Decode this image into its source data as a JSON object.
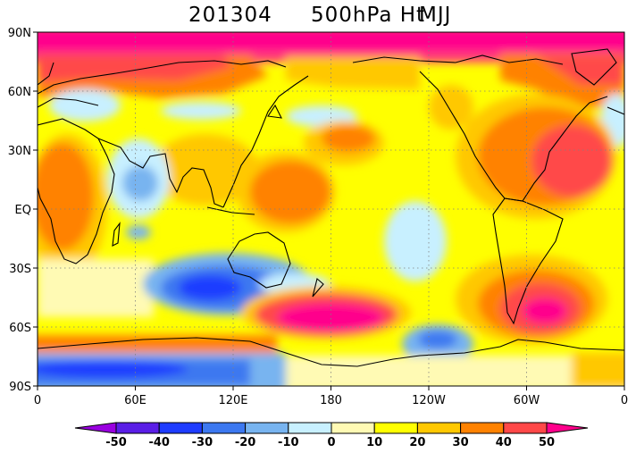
{
  "title": {
    "date": "201304",
    "variable": "500hPa Ht",
    "season": "MJJ"
  },
  "map": {
    "projection": "cylindrical equidistant, Pacific-centered",
    "lon_labels": [
      "0",
      "60E",
      "120E",
      "180",
      "120W",
      "60W",
      "0"
    ],
    "lat_labels": [
      "90N",
      "60N",
      "30N",
      "EQ",
      "30S",
      "60S",
      "90S"
    ],
    "grid": "dotted",
    "coastlines": true
  },
  "colorbar": {
    "levels": [
      "-50",
      "-40",
      "-30",
      "-20",
      "-10",
      "0",
      "10",
      "20",
      "30",
      "40",
      "50"
    ],
    "colors": [
      "#9a00e0",
      "#5a1ee6",
      "#1e3cff",
      "#3c78f0",
      "#78b4f0",
      "#c8f0ff",
      "#fffab4",
      "#ffff00",
      "#ffc800",
      "#ff8200",
      "#ff4848",
      "#ff008c"
    ]
  }
}
